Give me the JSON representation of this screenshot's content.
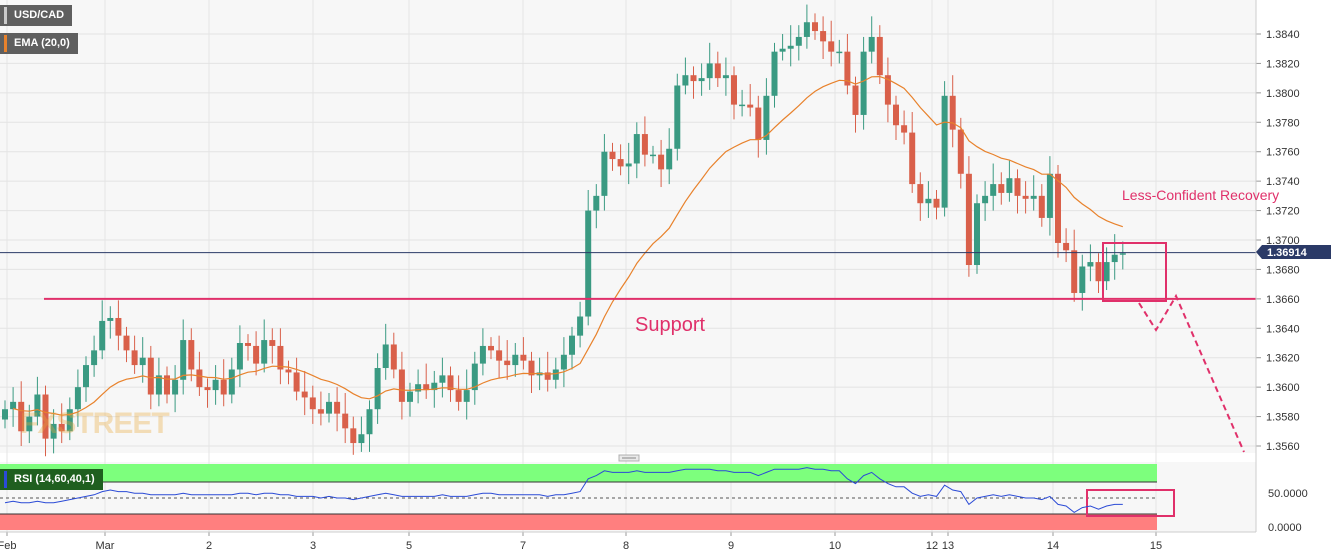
{
  "symbol": "USD/CAD",
  "ema_label": "EMA (20,0)",
  "rsi_label": "RSI (14,60,40,1)",
  "current_price": "1.36914",
  "watermark": "FXSTREET",
  "annotations": {
    "recovery": "Less-Confident Recovery",
    "support": "Support"
  },
  "colors": {
    "bull": "#3a9a82",
    "bear": "#d9604a",
    "ema": "#e8822c",
    "support_line": "#e0306a",
    "price_line": "#2b3a67",
    "rsi_line": "#2b4bd6",
    "rsi_high_zone": "#7dff7d",
    "rsi_low_zone": "#ff7f7f",
    "annotation": "#e0306a"
  },
  "chart_data": [
    {
      "type": "candlestick",
      "title": "USD/CAD",
      "ylim": [
        1.3545,
        1.3875
      ],
      "y_ticks": [
        "1.3560",
        "1.3580",
        "1.3600",
        "1.3620",
        "1.3640",
        "1.3660",
        "1.3680",
        "1.3700",
        "1.3720",
        "1.3740",
        "1.3760",
        "1.3780",
        "1.3800",
        "1.3820",
        "1.3840"
      ],
      "x_ticks": [
        "Feb",
        "Mar",
        "2",
        "3",
        "5",
        "7",
        "8",
        "9",
        "10",
        "12",
        "13",
        "14",
        "15"
      ],
      "support_level": 1.366,
      "current_price": 1.36914,
      "ema_period": 20,
      "closes": [
        1.3585,
        1.359,
        1.357,
        1.358,
        1.3595,
        1.3565,
        1.3575,
        1.357,
        1.3585,
        1.36,
        1.3615,
        1.3625,
        1.3645,
        1.3647,
        1.3635,
        1.3625,
        1.3615,
        1.362,
        1.3595,
        1.3608,
        1.3595,
        1.3605,
        1.3632,
        1.3612,
        1.36,
        1.3598,
        1.3605,
        1.3595,
        1.3612,
        1.363,
        1.3628,
        1.3616,
        1.3632,
        1.3628,
        1.3612,
        1.361,
        1.3597,
        1.3593,
        1.3585,
        1.3582,
        1.359,
        1.3582,
        1.3572,
        1.3562,
        1.3568,
        1.3585,
        1.3613,
        1.3629,
        1.3612,
        1.359,
        1.3597,
        1.3602,
        1.3598,
        1.3603,
        1.3608,
        1.3598,
        1.359,
        1.3598,
        1.3616,
        1.3628,
        1.3625,
        1.3618,
        1.3615,
        1.3622,
        1.3618,
        1.3608,
        1.361,
        1.3605,
        1.3612,
        1.3622,
        1.3635,
        1.3648,
        1.372,
        1.373,
        1.376,
        1.3755,
        1.375,
        1.3752,
        1.3772,
        1.3758,
        1.3758,
        1.3748,
        1.3762,
        1.3805,
        1.3812,
        1.3808,
        1.381,
        1.382,
        1.381,
        1.3812,
        1.3792,
        1.3792,
        1.379,
        1.3768,
        1.3798,
        1.3828,
        1.383,
        1.3832,
        1.3838,
        1.3848,
        1.3842,
        1.3835,
        1.3828,
        1.3828,
        1.3805,
        1.3785,
        1.3828,
        1.3838,
        1.3812,
        1.3792,
        1.3778,
        1.3773,
        1.3738,
        1.3725,
        1.3728,
        1.3722,
        1.3798,
        1.3775,
        1.3745,
        1.3683,
        1.3725,
        1.373,
        1.3738,
        1.3732,
        1.3742,
        1.373,
        1.3728,
        1.373,
        1.3715,
        1.3745,
        1.3698,
        1.3693,
        1.3664,
        1.3682,
        1.3685,
        1.3672,
        1.3685,
        1.369,
        1.3691
      ],
      "rsi": [
        47,
        48,
        47,
        47,
        48,
        47,
        47,
        48,
        49,
        50,
        51,
        52,
        54,
        55,
        54,
        54,
        53,
        53,
        52,
        52,
        52,
        52,
        53,
        52,
        52,
        52,
        52,
        52,
        52,
        53,
        53,
        52,
        53,
        53,
        52,
        52,
        51,
        51,
        51,
        50,
        51,
        50,
        50,
        49,
        50,
        51,
        52,
        53,
        52,
        51,
        51,
        51,
        51,
        51,
        52,
        51,
        51,
        51,
        52,
        53,
        53,
        52,
        52,
        52,
        52,
        52,
        52,
        51,
        52,
        52,
        53,
        54,
        62,
        64,
        67,
        66,
        66,
        66,
        67,
        66,
        66,
        66,
        66,
        67,
        68,
        68,
        68,
        68,
        67,
        67,
        66,
        66,
        66,
        64,
        66,
        68,
        68,
        68,
        68,
        69,
        68,
        68,
        67,
        67,
        62,
        59,
        64,
        66,
        62,
        59,
        57,
        57,
        53,
        51,
        52,
        51,
        58,
        55,
        54,
        46,
        50,
        51,
        52,
        51,
        52,
        51,
        50,
        50,
        49,
        51,
        46,
        45,
        41,
        44,
        45,
        43,
        45,
        46,
        46
      ]
    }
  ]
}
